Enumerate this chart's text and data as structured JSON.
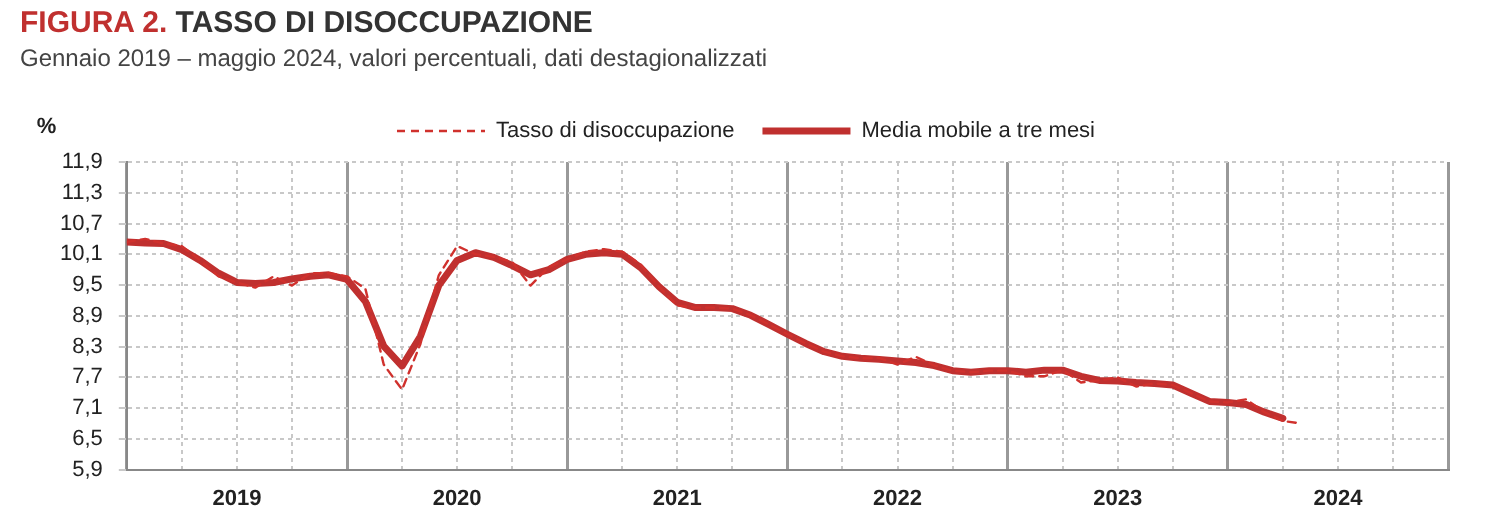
{
  "chart_data": {
    "type": "line",
    "title": "FIGURA 2. TASSO DI DISOCCUPAZIONE",
    "subtitle": "Gennaio 2019 – maggio 2024, valori percentuali, dati destagionalizzati",
    "ylabel": "%",
    "x": [
      "2019-01",
      "2019-02",
      "2019-03",
      "2019-04",
      "2019-05",
      "2019-06",
      "2019-07",
      "2019-08",
      "2019-09",
      "2019-10",
      "2019-11",
      "2019-12",
      "2020-01",
      "2020-02",
      "2020-03",
      "2020-04",
      "2020-05",
      "2020-06",
      "2020-07",
      "2020-08",
      "2020-09",
      "2020-10",
      "2020-11",
      "2020-12",
      "2021-01",
      "2021-02",
      "2021-03",
      "2021-04",
      "2021-05",
      "2021-06",
      "2021-07",
      "2021-08",
      "2021-09",
      "2021-10",
      "2021-11",
      "2021-12",
      "2022-01",
      "2022-02",
      "2022-03",
      "2022-04",
      "2022-05",
      "2022-06",
      "2022-07",
      "2022-08",
      "2022-09",
      "2022-10",
      "2022-11",
      "2022-12",
      "2023-01",
      "2023-02",
      "2023-03",
      "2023-04",
      "2023-05",
      "2023-06",
      "2023-07",
      "2023-08",
      "2023-09",
      "2023-10",
      "2023-11",
      "2023-12",
      "2024-01",
      "2024-02",
      "2024-03",
      "2024-04",
      "2024-05"
    ],
    "series": [
      {
        "name": "Tasso di disoccupazione",
        "color": "#d0312d",
        "line_style": "dashed",
        "values": [
          10.34,
          10.4,
          10.31,
          10.26,
          9.98,
          9.67,
          9.55,
          9.45,
          9.67,
          9.49,
          9.73,
          9.73,
          9.67,
          9.43,
          7.95,
          7.46,
          8.35,
          9.69,
          10.26,
          10.1,
          10.05,
          9.95,
          9.49,
          9.85,
          10.0,
          10.15,
          10.2,
          10.15,
          9.9,
          9.47,
          9.1,
          9.06,
          9.06,
          9.04,
          8.91,
          8.73,
          8.54,
          8.36,
          8.2,
          8.11,
          8.07,
          8.08,
          7.95,
          8.1,
          7.93,
          7.83,
          7.8,
          7.83,
          7.83,
          7.72,
          7.72,
          7.84,
          7.6,
          7.64,
          7.7,
          7.52,
          7.58,
          7.55,
          7.39,
          7.23,
          7.21,
          7.27,
          7.02,
          6.85,
          6.8
        ]
      },
      {
        "name": "Media mobile a tre mesi",
        "color": "#c0302f",
        "line_style": "solid",
        "values": [
          10.34,
          10.32,
          10.31,
          10.19,
          9.98,
          9.73,
          9.55,
          9.53,
          9.55,
          9.62,
          9.67,
          9.7,
          9.61,
          9.18,
          8.31,
          7.92,
          8.5,
          9.49,
          9.98,
          10.13,
          10.04,
          9.88,
          9.7,
          9.8,
          10.0,
          10.1,
          10.13,
          10.1,
          9.84,
          9.47,
          9.16,
          9.06,
          9.06,
          9.04,
          8.91,
          8.73,
          8.54,
          8.36,
          8.2,
          8.11,
          8.07,
          8.05,
          8.02,
          7.99,
          7.93,
          7.83,
          7.8,
          7.83,
          7.83,
          7.8,
          7.84,
          7.84,
          7.72,
          7.64,
          7.63,
          7.6,
          7.58,
          7.55,
          7.39,
          7.23,
          7.21,
          7.17,
          7.02,
          6.9,
          null
        ]
      }
    ],
    "xlim": [
      "2019-01-01",
      "2025-01-01"
    ],
    "xticks": [
      {
        "value": "2019-01-01",
        "label": null
      },
      {
        "value": "2019-04-01",
        "label": null
      },
      {
        "value": "2019-07-01",
        "label": "2019"
      },
      {
        "value": "2019-10-01",
        "label": null
      },
      {
        "value": "2020-01-01",
        "label": null
      },
      {
        "value": "2020-04-01",
        "label": null
      },
      {
        "value": "2020-07-01",
        "label": "2020"
      },
      {
        "value": "2020-10-01",
        "label": null
      },
      {
        "value": "2021-01-01",
        "label": null
      },
      {
        "value": "2021-04-01",
        "label": null
      },
      {
        "value": "2021-07-01",
        "label": "2021"
      },
      {
        "value": "2021-10-01",
        "label": null
      },
      {
        "value": "2022-01-01",
        "label": null
      },
      {
        "value": "2022-04-01",
        "label": null
      },
      {
        "value": "2022-07-01",
        "label": "2022"
      },
      {
        "value": "2022-10-01",
        "label": null
      },
      {
        "value": "2023-01-01",
        "label": null
      },
      {
        "value": "2023-04-01",
        "label": null
      },
      {
        "value": "2023-07-01",
        "label": "2023"
      },
      {
        "value": "2023-10-01",
        "label": null
      },
      {
        "value": "2024-01-01",
        "label": null
      },
      {
        "value": "2024-04-01",
        "label": null
      },
      {
        "value": "2024-07-01",
        "label": "2024"
      },
      {
        "value": "2024-10-01",
        "label": null
      },
      {
        "value": "2025-01-01",
        "label": null
      }
    ],
    "ylim": [
      5.9,
      11.9
    ],
    "yticks": [
      {
        "value": 5.9,
        "label": "5,9"
      },
      {
        "value": 6.5,
        "label": "6,5"
      },
      {
        "value": 7.1,
        "label": "7,1"
      },
      {
        "value": 7.7,
        "label": "7,7"
      },
      {
        "value": 8.3,
        "label": "8,3"
      },
      {
        "value": 8.9,
        "label": "8,9"
      },
      {
        "value": 9.5,
        "label": "9,5"
      },
      {
        "value": 10.1,
        "label": "10,1"
      },
      {
        "value": 10.7,
        "label": "10,7"
      },
      {
        "value": 11.3,
        "label": "11,3"
      },
      {
        "value": 11.9,
        "label": "11,9"
      }
    ],
    "grid": true,
    "legend": "top",
    "marker": "none"
  }
}
